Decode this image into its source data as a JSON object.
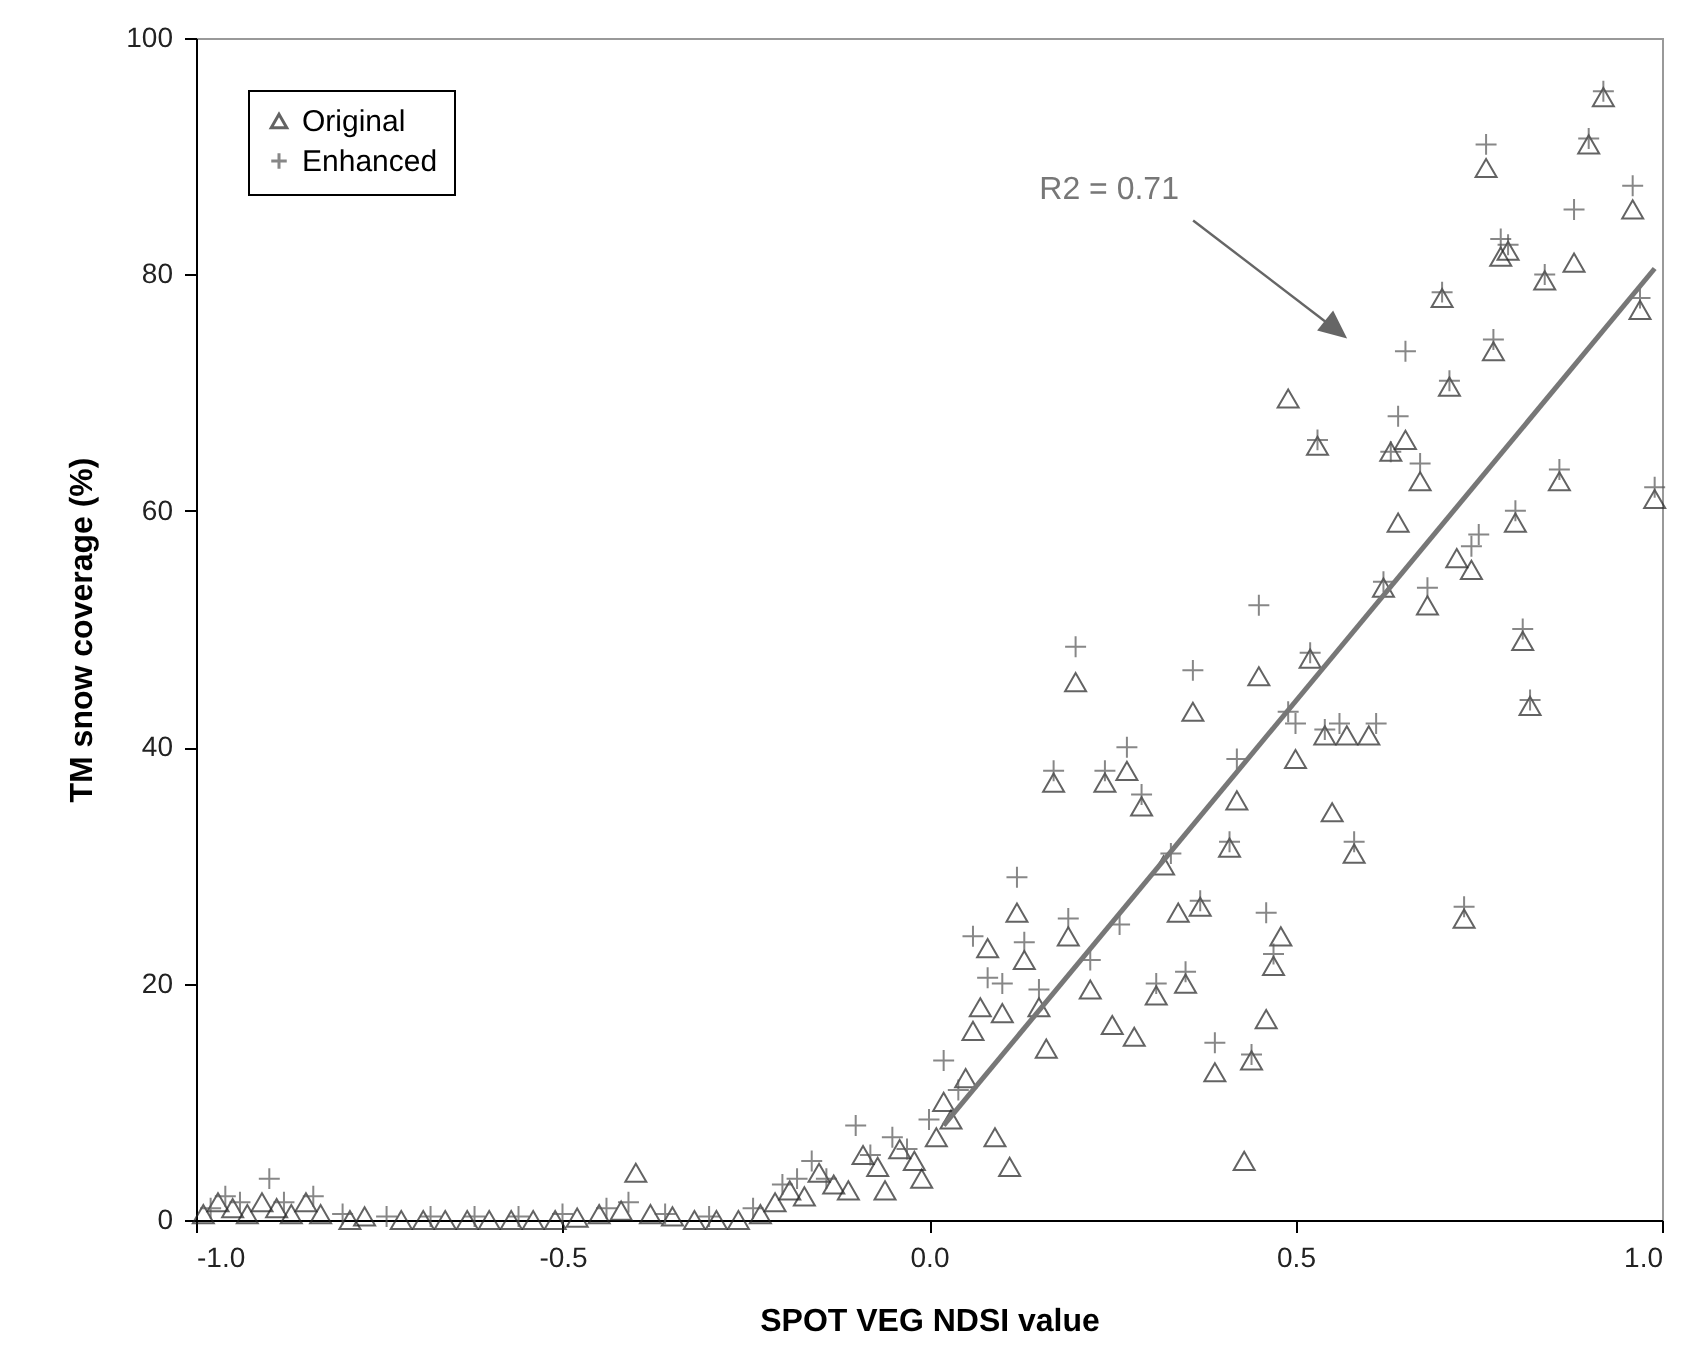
{
  "chart_data": {
    "type": "scatter",
    "xlabel": "SPOT VEG NDSI value",
    "ylabel": "TM snow coverage (%)",
    "xlim": [
      -1,
      1
    ],
    "xticks": [
      {
        "value": -1,
        "label": "-1.0"
      },
      {
        "value": -0.5,
        "label": "-0.5"
      },
      {
        "value": 0,
        "label": "0.0"
      },
      {
        "value": 0.5,
        "label": "0.5"
      },
      {
        "value": 1,
        "label": "1.0"
      }
    ],
    "ylim": [
      0,
      100
    ],
    "yticks": [
      0,
      20,
      40,
      60,
      80,
      100
    ],
    "grid": false,
    "legend": "top left",
    "annotations": [
      "R2 = 0.71"
    ],
    "series": [
      {
        "name": "Original",
        "color": "#222222",
        "marker": "triangle",
        "x": [
          -0.99,
          -0.97,
          -0.95,
          -0.93,
          -0.91,
          -0.89,
          -0.87,
          -0.85,
          -0.83,
          -0.79,
          -0.77,
          -0.72,
          -0.69,
          -0.66,
          -0.63,
          -0.6,
          -0.57,
          -0.54,
          -0.51,
          -0.48,
          -0.45,
          -0.42,
          -0.4,
          -0.38,
          -0.35,
          -0.32,
          -0.29,
          -0.26,
          -0.23,
          -0.21,
          -0.19,
          -0.17,
          -0.15,
          -0.13,
          -0.11,
          -0.09,
          -0.07,
          -0.06,
          -0.04,
          -0.02,
          -0.01,
          0.01,
          0.02,
          0.03,
          0.05,
          0.06,
          0.07,
          0.09,
          0.11,
          0.08,
          0.1,
          0.12,
          0.13,
          0.15,
          0.16,
          0.17,
          0.19,
          0.2,
          0.22,
          0.24,
          0.25,
          0.27,
          0.28,
          0.29,
          0.31,
          0.32,
          0.34,
          0.35,
          0.36,
          0.37,
          0.39,
          0.41,
          0.42,
          0.43,
          0.44,
          0.45,
          0.46,
          0.47,
          0.48,
          0.5,
          0.49,
          0.52,
          0.53,
          0.54,
          0.55,
          0.57,
          0.58,
          0.6,
          0.62,
          0.63,
          0.64,
          0.65,
          0.67,
          0.68,
          0.7,
          0.71,
          0.73,
          0.74,
          0.72,
          0.76,
          0.77,
          0.78,
          0.79,
          0.8,
          0.81,
          0.82,
          0.84,
          0.86,
          0.88,
          0.9,
          0.92,
          0.96,
          0.97,
          0.99
        ],
        "values": [
          0.5,
          1.5,
          1,
          0.5,
          1.5,
          1,
          0.5,
          1.5,
          0.5,
          0,
          0.3,
          0,
          0,
          0,
          0,
          0,
          0,
          0,
          0,
          0.2,
          0.5,
          0.8,
          4,
          0.5,
          0.3,
          0,
          0,
          0,
          0.5,
          1.5,
          2.5,
          2,
          4,
          3,
          2.5,
          5.5,
          4.5,
          2.5,
          6,
          5,
          3.5,
          7,
          10,
          8.5,
          12,
          16,
          18,
          7,
          4.5,
          23,
          17.5,
          26,
          22,
          18,
          14.5,
          37,
          24,
          45.5,
          19.5,
          37,
          16.5,
          38,
          15.5,
          35,
          19,
          30,
          26,
          20,
          43,
          26.5,
          12.5,
          31.5,
          35.5,
          5,
          13.5,
          46,
          17,
          21.5,
          24,
          39,
          69.5,
          47.5,
          65.5,
          41,
          34.5,
          41,
          31,
          41,
          53.5,
          65,
          59,
          66,
          62.5,
          52,
          78,
          70.5,
          25.5,
          55,
          56,
          89,
          73.5,
          81.5,
          82,
          59,
          49,
          43.5,
          79.5,
          62.5,
          81,
          91,
          95,
          85.5,
          77,
          61
        ]
      },
      {
        "name": "Enhanced",
        "color": "#555555",
        "marker": "cross",
        "x": [
          -0.98,
          -0.96,
          -0.94,
          -0.9,
          -0.88,
          -0.84,
          -0.8,
          -0.74,
          -0.68,
          -0.62,
          -0.56,
          -0.5,
          -0.44,
          -0.41,
          -0.36,
          -0.3,
          -0.24,
          -0.2,
          -0.18,
          -0.16,
          -0.14,
          -0.1,
          -0.08,
          -0.05,
          -0.03,
          0,
          0.02,
          0.04,
          0.06,
          0.08,
          0.1,
          0.12,
          0.13,
          0.15,
          0.17,
          0.19,
          0.2,
          0.22,
          0.24,
          0.26,
          0.27,
          0.29,
          0.31,
          0.33,
          0.35,
          0.36,
          0.37,
          0.39,
          0.41,
          0.42,
          0.44,
          0.45,
          0.46,
          0.47,
          0.49,
          0.5,
          0.52,
          0.53,
          0.54,
          0.56,
          0.58,
          0.61,
          0.62,
          0.63,
          0.64,
          0.65,
          0.67,
          0.68,
          0.7,
          0.71,
          0.73,
          0.74,
          0.75,
          0.76,
          0.77,
          0.78,
          0.79,
          0.8,
          0.81,
          0.82,
          0.84,
          0.86,
          0.88,
          0.9,
          0.92,
          0.96,
          0.97,
          0.99
        ],
        "values": [
          1,
          2,
          1.5,
          3.5,
          1.5,
          2,
          0.5,
          0.3,
          0.3,
          0.3,
          0.3,
          0.5,
          1,
          1.5,
          0.5,
          0.3,
          1,
          3,
          3.5,
          5,
          3.5,
          8,
          5.5,
          7,
          6,
          8.5,
          13.5,
          11,
          24,
          20.5,
          20,
          29,
          23.5,
          19.5,
          38,
          25.5,
          48.5,
          22,
          38,
          25,
          40,
          36,
          20,
          31,
          21,
          46.5,
          27,
          15,
          32,
          39,
          14,
          52,
          26,
          22.5,
          43,
          42,
          48,
          66,
          41.5,
          42,
          32,
          42,
          54,
          65,
          68,
          73.5,
          64,
          53.5,
          78.5,
          71,
          26.5,
          57,
          58,
          91,
          74.5,
          83,
          82.5,
          60,
          50,
          44,
          80,
          63.5,
          85.5,
          91.5,
          95.5,
          87.5,
          78,
          62
        ]
      },
      {
        "type": "line",
        "color": "#777777",
        "x": [
          0.02,
          0.99
        ],
        "values": [
          8,
          80.5
        ]
      }
    ]
  }
}
